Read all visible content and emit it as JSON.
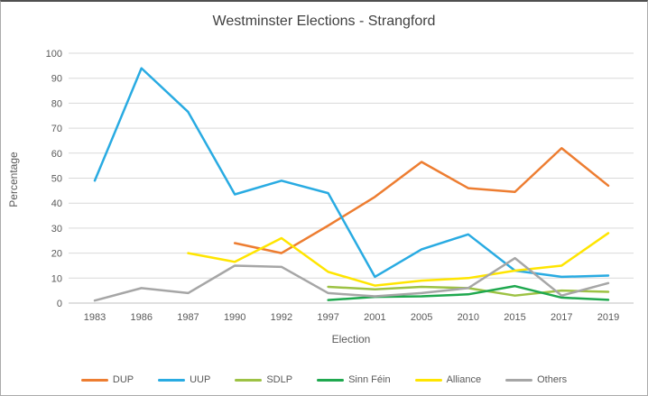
{
  "chart_data": {
    "type": "line",
    "title": "Westminster Elections - Strangford",
    "xlabel": "Election",
    "ylabel": "Percentage",
    "ylim": [
      0,
      100
    ],
    "yticks": [
      0,
      10,
      20,
      30,
      40,
      50,
      60,
      70,
      80,
      90,
      100
    ],
    "grid": true,
    "legend_position": "bottom",
    "categories": [
      "1983",
      "1986",
      "1987",
      "1990",
      "1992",
      "1997",
      "2001",
      "2005",
      "2010",
      "2015",
      "2017",
      "2019"
    ],
    "series": [
      {
        "name": "DUP",
        "color": "#ED7D31",
        "values": [
          null,
          null,
          null,
          24,
          20,
          31,
          42.5,
          56.5,
          46,
          44.5,
          62,
          47
        ]
      },
      {
        "name": "UUP",
        "color": "#29ABE2",
        "values": [
          49,
          94,
          76.5,
          43.5,
          49,
          44,
          10.5,
          21.5,
          27.5,
          13,
          10.5,
          11
        ]
      },
      {
        "name": "SDLP",
        "color": "#9DC244",
        "values": [
          null,
          null,
          null,
          null,
          null,
          6.5,
          5.5,
          6.5,
          6,
          3,
          5,
          4.5
        ]
      },
      {
        "name": "Sinn Féin",
        "color": "#1FA84F",
        "values": [
          null,
          null,
          null,
          null,
          null,
          1.2,
          2.5,
          2.7,
          3.5,
          6.8,
          2.2,
          1.3
        ]
      },
      {
        "name": "Alliance",
        "color": "#FFE500",
        "values": [
          null,
          null,
          20,
          16.5,
          26,
          12.5,
          7,
          9,
          10,
          13,
          15,
          28
        ]
      },
      {
        "name": "Others",
        "color": "#A6A6A6",
        "values": [
          1,
          6,
          4,
          15,
          14.5,
          4,
          2.7,
          4,
          6,
          18,
          3,
          8
        ]
      }
    ],
    "colors": {
      "gridline": "#D9D9D9",
      "axis_line": "#BFBFBF",
      "tick_text": "#595959",
      "title_text": "#404040"
    }
  }
}
